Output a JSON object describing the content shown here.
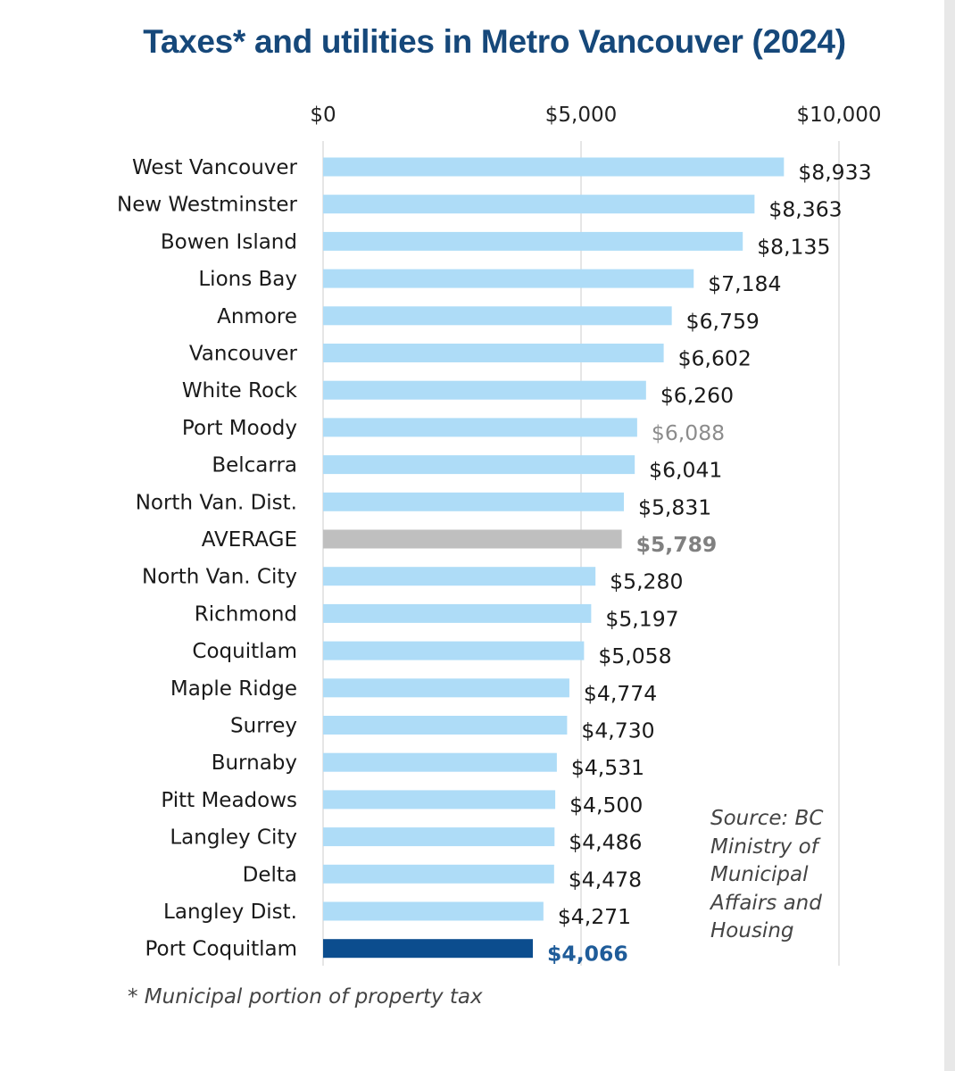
{
  "chart_data": {
    "type": "bar",
    "orientation": "horizontal",
    "title": "Taxes* and utilities in Metro Vancouver (2024)",
    "xlim": [
      0,
      10000
    ],
    "x_ticks": [
      0,
      5000,
      10000
    ],
    "x_tick_labels": [
      "$0",
      "$5,000",
      "$10,000"
    ],
    "axis_position": "top",
    "grid": true,
    "categories": [
      "West Vancouver",
      "New Westminster",
      "Bowen Island",
      "Lions Bay",
      "Anmore",
      "Vancouver",
      "White Rock",
      "Port Moody",
      "Belcarra",
      "North Van. Dist.",
      "AVERAGE",
      "North Van. City",
      "Richmond",
      "Coquitlam",
      "Maple Ridge",
      "Surrey",
      "Burnaby",
      "Pitt Meadows",
      "Langley City",
      "Delta",
      "Langley Dist.",
      "Port Coquitlam"
    ],
    "values": [
      8933,
      8363,
      8135,
      7184,
      6759,
      6602,
      6260,
      6088,
      6041,
      5831,
      5789,
      5280,
      5197,
      5058,
      4774,
      4730,
      4531,
      4500,
      4486,
      4478,
      4271,
      4066
    ],
    "value_labels": [
      "$8,933",
      "$8,363",
      "$8,135",
      "$7,184",
      "$6,759",
      "$6,602",
      "$6,260",
      "$6,088",
      "$6,041",
      "$5,831",
      "$5,789",
      "$5,280",
      "$5,197",
      "$5,058",
      "$4,774",
      "$4,730",
      "$4,531",
      "$4,500",
      "$4,486",
      "$4,478",
      "$4,271",
      "$4,066"
    ],
    "highlights": {
      "Port Moody": "muted",
      "AVERAGE": "average",
      "Port Coquitlam": "focus"
    },
    "colors": {
      "bar": "#aedcf7",
      "average_bar": "#bfbfbf",
      "average_label": "#808080",
      "focus_bar": "#0c4d8e",
      "focus_label": "#1f5c99",
      "muted_label": "#8c8c8c",
      "text": "#1a1a1a",
      "grid": "#d9d9d9",
      "title": "#16487a"
    }
  },
  "source_note": "Source: BC\nMinistry of\nMunicipal\nAffairs and\nHousing",
  "footnote": "* Municipal portion of property tax"
}
